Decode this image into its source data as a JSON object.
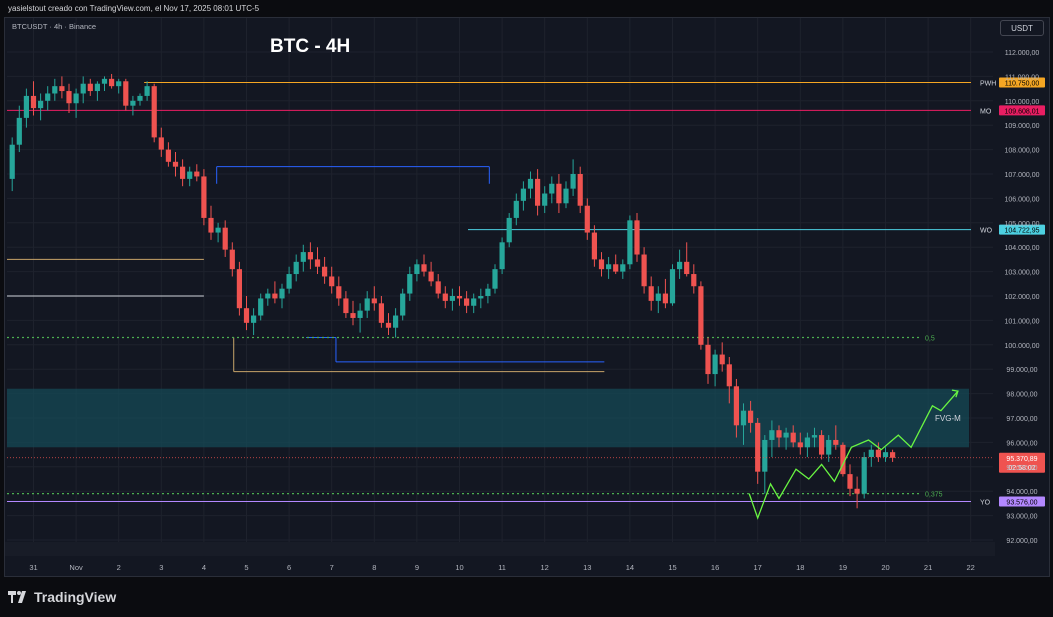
{
  "header": {
    "attribution": "yasielstout creado con TradingView.com, el Nov 17, 2025 08:01 UTC-5",
    "symbol_line": "BTCUSDT · 4h · Binance",
    "title": "BTC - 4H",
    "currency": "USDT"
  },
  "footer": {
    "brand": "TradingView"
  },
  "colors": {
    "up": "#26a69a",
    "down": "#ef5350",
    "bg": "#131722",
    "grid": "#1e222d",
    "orange": "#f5a623",
    "pink": "#e91e63",
    "cyan": "#4dd0e1",
    "purple": "#b388ff",
    "green_dotted": "#4caf50",
    "blue_line": "#2962ff",
    "projection": "#69f542",
    "zone": "#164a55"
  },
  "chart_data": {
    "type": "candlestick",
    "title": "BTC - 4H",
    "ylim": [
      91000,
      113000
    ],
    "y_ticks": [
      92000,
      93000,
      94000,
      95000,
      96000,
      97000,
      98000,
      99000,
      100000,
      101000,
      102000,
      103000,
      104000,
      105000,
      106000,
      107000,
      108000,
      109000,
      110000,
      111000,
      112000
    ],
    "x_ticks": [
      {
        "label": "31",
        "day": 0
      },
      {
        "label": "Nov",
        "day": 1
      },
      {
        "label": "2",
        "day": 2
      },
      {
        "label": "3",
        "day": 3
      },
      {
        "label": "4",
        "day": 4
      },
      {
        "label": "5",
        "day": 5
      },
      {
        "label": "6",
        "day": 6
      },
      {
        "label": "7",
        "day": 7
      },
      {
        "label": "8",
        "day": 8
      },
      {
        "label": "9",
        "day": 9
      },
      {
        "label": "10",
        "day": 10
      },
      {
        "label": "11",
        "day": 11
      },
      {
        "label": "12",
        "day": 12
      },
      {
        "label": "13",
        "day": 13
      },
      {
        "label": "14",
        "day": 14
      },
      {
        "label": "15",
        "day": 15
      },
      {
        "label": "16",
        "day": 16
      },
      {
        "label": "17",
        "day": 17
      },
      {
        "label": "18",
        "day": 18
      },
      {
        "label": "19",
        "day": 19
      },
      {
        "label": "20",
        "day": 20
      },
      {
        "label": "21",
        "day": 21
      },
      {
        "label": "22",
        "day": 22
      }
    ],
    "candles": [
      [
        106800,
        108500,
        106300,
        108200
      ],
      [
        108200,
        109800,
        107900,
        109300
      ],
      [
        109300,
        110500,
        108900,
        110200
      ],
      [
        110200,
        110800,
        109400,
        109700
      ],
      [
        109700,
        110300,
        109200,
        110000
      ],
      [
        110000,
        110600,
        109600,
        110300
      ],
      [
        110300,
        110900,
        110000,
        110600
      ],
      [
        110600,
        111000,
        110100,
        110400
      ],
      [
        110400,
        110700,
        109500,
        109900
      ],
      [
        109900,
        110500,
        109300,
        110300
      ],
      [
        110300,
        111000,
        109900,
        110700
      ],
      [
        110700,
        110900,
        110200,
        110400
      ],
      [
        110400,
        110800,
        110000,
        110700
      ],
      [
        110700,
        111000,
        110400,
        110900
      ],
      [
        110900,
        111100,
        110500,
        110600
      ],
      [
        110600,
        110900,
        110300,
        110800
      ],
      [
        110800,
        110900,
        109600,
        109800
      ],
      [
        109800,
        110200,
        109400,
        110000
      ],
      [
        110000,
        110300,
        109800,
        110200
      ],
      [
        110200,
        110800,
        110000,
        110600
      ],
      [
        110600,
        110700,
        108300,
        108500
      ],
      [
        108500,
        108900,
        107700,
        108000
      ],
      [
        108000,
        108300,
        107300,
        107500
      ],
      [
        107500,
        107900,
        106900,
        107300
      ],
      [
        107300,
        107600,
        106500,
        106800
      ],
      [
        106800,
        107300,
        106500,
        107100
      ],
      [
        107100,
        107400,
        106700,
        106900
      ],
      [
        106900,
        107200,
        104900,
        105200
      ],
      [
        105200,
        105700,
        104300,
        104600
      ],
      [
        104600,
        105000,
        104200,
        104800
      ],
      [
        104800,
        105100,
        103600,
        103900
      ],
      [
        103900,
        104200,
        102800,
        103100
      ],
      [
        103100,
        103400,
        101200,
        101500
      ],
      [
        101500,
        102000,
        100600,
        100900
      ],
      [
        100900,
        101500,
        100400,
        101200
      ],
      [
        101200,
        102100,
        101000,
        101900
      ],
      [
        101900,
        102300,
        101600,
        102100
      ],
      [
        102100,
        102600,
        101700,
        101900
      ],
      [
        101900,
        102500,
        101500,
        102300
      ],
      [
        102300,
        103200,
        102100,
        102900
      ],
      [
        102900,
        103700,
        102600,
        103400
      ],
      [
        103400,
        104100,
        103000,
        103800
      ],
      [
        103800,
        104200,
        103100,
        103500
      ],
      [
        103500,
        104000,
        102900,
        103200
      ],
      [
        103200,
        103600,
        102500,
        102800
      ],
      [
        102800,
        103200,
        102100,
        102400
      ],
      [
        102400,
        102800,
        101600,
        101900
      ],
      [
        101900,
        102200,
        101100,
        101300
      ],
      [
        101300,
        101800,
        100800,
        101100
      ],
      [
        101100,
        101700,
        100500,
        101400
      ],
      [
        101400,
        102200,
        101100,
        101900
      ],
      [
        101900,
        102400,
        101400,
        101700
      ],
      [
        101700,
        102000,
        100700,
        100900
      ],
      [
        100900,
        101300,
        100400,
        100700
      ],
      [
        100700,
        101500,
        100300,
        101200
      ],
      [
        101200,
        102300,
        101000,
        102100
      ],
      [
        102100,
        103200,
        101800,
        102900
      ],
      [
        102900,
        103500,
        102600,
        103300
      ],
      [
        103300,
        103700,
        102800,
        103000
      ],
      [
        103000,
        103400,
        102400,
        102600
      ],
      [
        102600,
        102900,
        101900,
        102100
      ],
      [
        102100,
        102400,
        101500,
        101800
      ],
      [
        101800,
        102300,
        101400,
        102000
      ],
      [
        102000,
        102400,
        101600,
        101900
      ],
      [
        101900,
        102200,
        101300,
        101600
      ],
      [
        101600,
        102100,
        101300,
        101900
      ],
      [
        101900,
        102300,
        101500,
        102000
      ],
      [
        102000,
        102500,
        101700,
        102300
      ],
      [
        102300,
        103300,
        102100,
        103100
      ],
      [
        103100,
        104400,
        102900,
        104200
      ],
      [
        104200,
        105400,
        104000,
        105200
      ],
      [
        105200,
        106200,
        104900,
        105900
      ],
      [
        105900,
        106700,
        105500,
        106400
      ],
      [
        106400,
        107100,
        106000,
        106800
      ],
      [
        106800,
        107200,
        105300,
        105700
      ],
      [
        105700,
        106500,
        105400,
        106200
      ],
      [
        106200,
        106900,
        105800,
        106600
      ],
      [
        106600,
        107000,
        105400,
        105800
      ],
      [
        105800,
        106700,
        105600,
        106400
      ],
      [
        106400,
        107600,
        106100,
        107000
      ],
      [
        107000,
        107300,
        105400,
        105700
      ],
      [
        105700,
        106000,
        104300,
        104600
      ],
      [
        104600,
        104900,
        103200,
        103500
      ],
      [
        103500,
        103800,
        102800,
        103100
      ],
      [
        103100,
        103600,
        102700,
        103300
      ],
      [
        103300,
        103700,
        102900,
        103000
      ],
      [
        103000,
        103500,
        102700,
        103300
      ],
      [
        103300,
        105300,
        103100,
        105100
      ],
      [
        105100,
        105400,
        103400,
        103700
      ],
      [
        103700,
        104000,
        102100,
        102400
      ],
      [
        102400,
        102800,
        101400,
        101800
      ],
      [
        101800,
        102400,
        101300,
        102100
      ],
      [
        102100,
        102700,
        101500,
        101700
      ],
      [
        101700,
        103300,
        101600,
        103100
      ],
      [
        103100,
        103900,
        102700,
        103400
      ],
      [
        103400,
        104200,
        102800,
        102900
      ],
      [
        102900,
        103300,
        102100,
        102400
      ],
      [
        102400,
        102600,
        99800,
        100000
      ],
      [
        100000,
        100300,
        98400,
        98800
      ],
      [
        98800,
        99800,
        98300,
        99600
      ],
      [
        99600,
        100100,
        98900,
        99200
      ],
      [
        99200,
        99500,
        97600,
        98300
      ],
      [
        98300,
        98600,
        96200,
        96700
      ],
      [
        96700,
        97600,
        95900,
        97300
      ],
      [
        97300,
        97700,
        96400,
        96800
      ],
      [
        96800,
        97000,
        94300,
        94800
      ],
      [
        94800,
        96300,
        93900,
        96100
      ],
      [
        96100,
        96900,
        95400,
        96500
      ],
      [
        96500,
        96700,
        95800,
        96200
      ],
      [
        96200,
        96600,
        95700,
        96400
      ],
      [
        96400,
        96700,
        95800,
        96000
      ],
      [
        96000,
        96400,
        95500,
        95800
      ],
      [
        95800,
        96400,
        95400,
        96200
      ],
      [
        96200,
        96600,
        95800,
        96300
      ],
      [
        96300,
        96500,
        95300,
        95500
      ],
      [
        95500,
        96300,
        95200,
        96100
      ],
      [
        96100,
        96700,
        95700,
        95900
      ],
      [
        95900,
        96000,
        94600,
        94700
      ],
      [
        94700,
        95100,
        93800,
        94100
      ],
      [
        94100,
        94600,
        93300,
        93900
      ],
      [
        93900,
        95600,
        93700,
        95400
      ],
      [
        95400,
        95900,
        95000,
        95700
      ],
      [
        95700,
        96000,
        95200,
        95400
      ],
      [
        95400,
        95800,
        95200,
        95600
      ],
      [
        95600,
        95700,
        95200,
        95370
      ]
    ],
    "levels": [
      {
        "label": "PWH",
        "value": 110750,
        "value_label": "110.750,00",
        "color": "#f5a623"
      },
      {
        "label": "MO",
        "value": 109608,
        "value_label": "109.608,01",
        "color": "#e91e63"
      },
      {
        "label": "WO",
        "value": 104722,
        "value_label": "104.722,95",
        "color": "#4dd0e1"
      },
      {
        "label": "YO",
        "value": 93576,
        "value_label": "93.576,00",
        "color": "#b388ff"
      }
    ],
    "last_price": {
      "value": 95370.89,
      "label": "95.370,89",
      "countdown": "02:58:02"
    },
    "fib_levels": [
      {
        "label": "0,5",
        "value": 100300
      },
      {
        "label": "0,375",
        "value": 93900
      }
    ],
    "zones": [
      {
        "label": "FVG-M",
        "from": 95800,
        "to": 98200
      }
    ],
    "projection": [
      [
        16.8,
        93900
      ],
      [
        17.0,
        92900
      ],
      [
        17.3,
        94300
      ],
      [
        17.5,
        93700
      ],
      [
        17.9,
        94900
      ],
      [
        18.2,
        94500
      ],
      [
        18.5,
        95100
      ],
      [
        18.8,
        94400
      ],
      [
        19.2,
        95800
      ],
      [
        19.6,
        96100
      ],
      [
        19.9,
        95700
      ],
      [
        20.3,
        96300
      ],
      [
        20.6,
        95800
      ],
      [
        21.1,
        97500
      ],
      [
        21.3,
        97300
      ],
      [
        21.7,
        98100
      ]
    ],
    "y_tick_labels": [
      "92.000,00",
      "93.000,00",
      "94.000,00",
      "95.000,00",
      "96.000,00",
      "97.000,00",
      "98.000,00",
      "99.000,00",
      "100.000,00",
      "101.000,00",
      "102.000,00",
      "103.000,00",
      "104.000,00",
      "105.000,00",
      "106.000,00",
      "107.000,00",
      "108.000,00",
      "109.000,00",
      "110.000,00",
      "111.000,00",
      "112.000,00"
    ]
  }
}
